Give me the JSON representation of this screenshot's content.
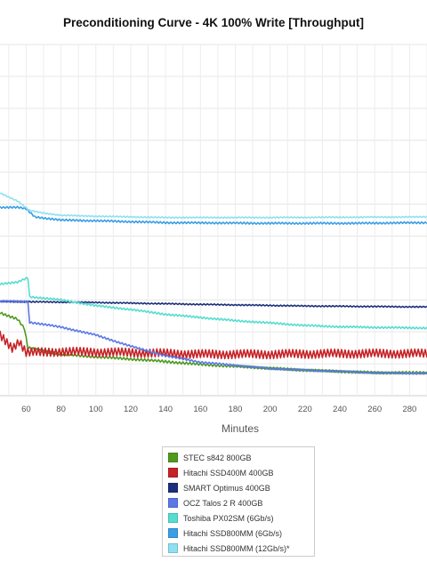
{
  "chart_data": {
    "type": "line",
    "title": "Preconditioning Curve - 4K 100% Write [Throughput]",
    "xlabel": "Minutes",
    "ylabel": "",
    "xlim": [
      45,
      290
    ],
    "ylim": [
      0,
      11
    ],
    "x_ticks": [
      60,
      80,
      100,
      120,
      140,
      160,
      180,
      200,
      220,
      240,
      260,
      280
    ],
    "x_tick_labels": [
      "60",
      "80",
      "100",
      "120",
      "140",
      "160",
      "180",
      "200",
      "220",
      "240",
      "260",
      "280"
    ],
    "y_tick_labels": [],
    "grid": true,
    "legend_position": "bottom",
    "series": [
      {
        "name": "STEC s842 800GB",
        "color": "#4e9a1f",
        "points": [
          [
            45,
            2.6
          ],
          [
            55,
            2.4
          ],
          [
            59,
            2.1
          ],
          [
            61,
            1.5
          ],
          [
            70,
            1.4
          ],
          [
            80,
            1.3
          ],
          [
            100,
            1.22
          ],
          [
            120,
            1.15
          ],
          [
            140,
            1.07
          ],
          [
            160,
            0.98
          ],
          [
            180,
            0.92
          ],
          [
            200,
            0.86
          ],
          [
            220,
            0.8
          ],
          [
            240,
            0.76
          ],
          [
            260,
            0.72
          ],
          [
            280,
            0.72
          ],
          [
            290,
            0.72
          ]
        ],
        "noise": 0.04
      },
      {
        "name": "Hitachi SSD400M 400GB",
        "color": "#c62327",
        "points": [
          [
            45,
            1.9
          ],
          [
            52,
            1.5
          ],
          [
            56,
            1.7
          ],
          [
            60,
            1.35
          ],
          [
            80,
            1.38
          ],
          [
            120,
            1.35
          ],
          [
            160,
            1.3
          ],
          [
            200,
            1.3
          ],
          [
            240,
            1.32
          ],
          [
            290,
            1.32
          ]
        ],
        "noise": 0.14
      },
      {
        "name": "SMART Optimus 400GB",
        "color": "#1c2f7a",
        "points": [
          [
            45,
            2.95
          ],
          [
            100,
            2.92
          ],
          [
            160,
            2.86
          ],
          [
            220,
            2.81
          ],
          [
            290,
            2.78
          ]
        ],
        "noise": 0.02
      },
      {
        "name": "OCZ Talos 2 R 400GB",
        "color": "#5a78e6",
        "points": [
          [
            45,
            2.95
          ],
          [
            61,
            2.95
          ],
          [
            62,
            2.3
          ],
          [
            80,
            2.15
          ],
          [
            100,
            1.9
          ],
          [
            120,
            1.55
          ],
          [
            140,
            1.25
          ],
          [
            160,
            1.05
          ],
          [
            180,
            0.95
          ],
          [
            200,
            0.85
          ],
          [
            220,
            0.8
          ],
          [
            240,
            0.76
          ],
          [
            260,
            0.72
          ],
          [
            280,
            0.7
          ],
          [
            290,
            0.7
          ]
        ],
        "noise": 0.03
      },
      {
        "name": "Toshiba PX02SM (6Gb/s)",
        "color": "#55ddd0",
        "points": [
          [
            45,
            3.5
          ],
          [
            55,
            3.55
          ],
          [
            61,
            3.7
          ],
          [
            62,
            3.1
          ],
          [
            80,
            3.0
          ],
          [
            100,
            2.82
          ],
          [
            120,
            2.7
          ],
          [
            140,
            2.55
          ],
          [
            160,
            2.45
          ],
          [
            180,
            2.35
          ],
          [
            200,
            2.28
          ],
          [
            220,
            2.2
          ],
          [
            240,
            2.16
          ],
          [
            260,
            2.14
          ],
          [
            290,
            2.12
          ]
        ],
        "noise": 0.03
      },
      {
        "name": "Hitachi SSD800MM (6Gb/s)",
        "color": "#3a9ee6",
        "points": [
          [
            45,
            5.9
          ],
          [
            55,
            5.9
          ],
          [
            60,
            5.85
          ],
          [
            65,
            5.6
          ],
          [
            80,
            5.5
          ],
          [
            100,
            5.48
          ],
          [
            140,
            5.42
          ],
          [
            200,
            5.4
          ],
          [
            250,
            5.4
          ],
          [
            290,
            5.42
          ]
        ],
        "noise": 0.03
      },
      {
        "name": "Hitachi SSD800MM (12Gb/s)*",
        "color": "#8fe0f2",
        "points": [
          [
            45,
            6.35
          ],
          [
            55,
            6.1
          ],
          [
            62,
            5.8
          ],
          [
            70,
            5.72
          ],
          [
            80,
            5.65
          ],
          [
            100,
            5.62
          ],
          [
            140,
            5.58
          ],
          [
            200,
            5.58
          ],
          [
            290,
            5.6
          ]
        ],
        "noise": 0.02
      }
    ]
  }
}
